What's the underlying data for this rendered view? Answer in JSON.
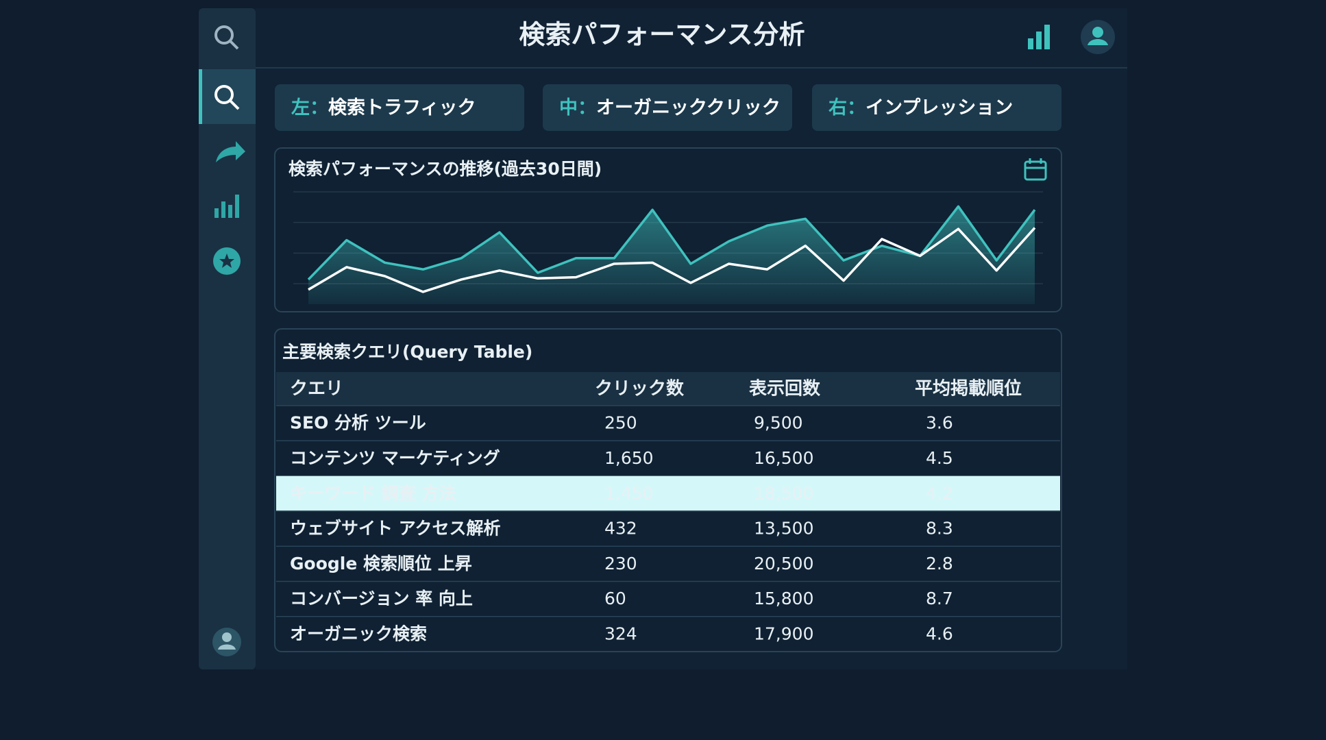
{
  "header": {
    "title": "検索パフォーマンス分析"
  },
  "tabs": [
    {
      "prefix": "左：",
      "name": "検索トラフィック"
    },
    {
      "prefix": "中：",
      "name": "オーガニッククリック"
    },
    {
      "prefix": "右：",
      "name": "インプレッション"
    }
  ],
  "chart_data": {
    "type": "line",
    "title": "検索パフォーマンスの推移(過去30日間)",
    "ylim": [
      0,
      100
    ],
    "grid": true,
    "series": [
      {
        "color": "#3fc2be",
        "fill": true,
        "values": [
          22,
          57,
          37,
          31,
          41,
          64,
          28,
          41,
          41,
          84,
          36,
          56,
          70,
          76,
          39,
          52,
          43,
          87,
          39,
          84
        ]
      },
      {
        "color": "#ffffff",
        "fill": false,
        "values": [
          13,
          33,
          25,
          11,
          22,
          30,
          23,
          24,
          36,
          37,
          19,
          36,
          31,
          52,
          21,
          58,
          43,
          67,
          30,
          68
        ]
      }
    ]
  },
  "table": {
    "title": "主要検索クエリ(Query Table)",
    "columns": [
      "クエリ",
      "クリック数",
      "表示回数",
      "平均掲載順位"
    ],
    "highlighted_row": 2,
    "rows": [
      [
        "SEO 分析 ツール",
        "250",
        "9,500",
        "3.6"
      ],
      [
        "コンテンツ マーケティング",
        "1,650",
        "16,500",
        "4.5"
      ],
      [
        "キーワード 調査 方法",
        "1,450",
        "18,500",
        "4.2"
      ],
      [
        "ウェブサイト アクセス解析",
        "432",
        "13,500",
        "8.3"
      ],
      [
        "Google 検索順位 上昇",
        "230",
        "20,500",
        "2.8"
      ],
      [
        "コンバージョン 率 向上",
        "60",
        "15,800",
        "8.7"
      ],
      [
        "オーガニック検索",
        "324",
        "17,900",
        "4.6"
      ]
    ]
  }
}
